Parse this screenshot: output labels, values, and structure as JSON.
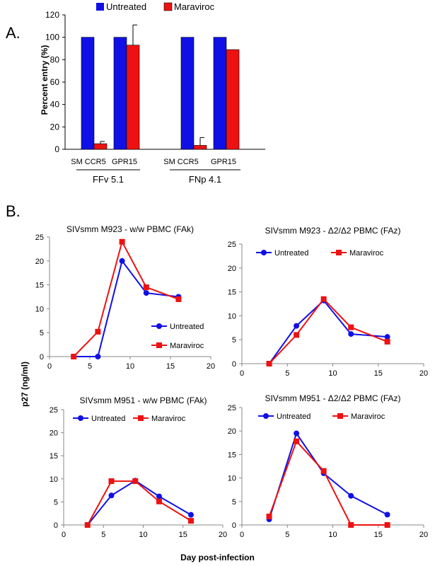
{
  "panel_a_label": "A.",
  "panel_b_label": "B.",
  "colors": {
    "untreated": "#1010e6",
    "maraviroc": "#ee1111"
  },
  "chart_data": [
    {
      "type": "bar",
      "ylabel": "Percent entry (%)",
      "ylim": [
        0,
        120
      ],
      "yticks": [
        "0",
        "20",
        "40",
        "60",
        "80",
        "100",
        "120"
      ],
      "categories": [
        "SM CCR5",
        "GPR15",
        "SM CCR5",
        "GPR15"
      ],
      "groups": [
        "FFv 5.1",
        "FNp 4.1"
      ],
      "legend_placement": "top",
      "series": [
        {
          "name": "Untreated",
          "values": [
            100,
            100,
            100,
            100
          ],
          "error": [
            0,
            0,
            0,
            0
          ]
        },
        {
          "name": "Maraviroc",
          "values": [
            5,
            93,
            3.5,
            89
          ],
          "error": [
            2,
            18,
            7,
            0
          ]
        }
      ]
    },
    {
      "type": "line",
      "title": "SIVsmm M923 - w/w PBMC (FAk)",
      "xlim": [
        0,
        20
      ],
      "ylim": [
        0,
        25
      ],
      "xticks": [
        "0",
        "5",
        "10",
        "15",
        "20"
      ],
      "yticks": [
        "0",
        "5",
        "10",
        "15",
        "20",
        "25"
      ],
      "legend_placement": "inside-right",
      "series": [
        {
          "name": "Untreated",
          "x": [
            3,
            6,
            9,
            12,
            16
          ],
          "y": [
            0,
            0,
            20,
            13.3,
            12.5
          ]
        },
        {
          "name": "Maraviroc",
          "x": [
            3,
            6,
            9,
            12,
            16
          ],
          "y": [
            0,
            5.2,
            24,
            14.5,
            12
          ]
        }
      ]
    },
    {
      "type": "line",
      "title": "SIVsmm M923 - Δ2/Δ2 PBMC (FAz)",
      "xlim": [
        0,
        20
      ],
      "ylim": [
        0,
        25
      ],
      "xticks": [
        "0",
        "5",
        "10",
        "15",
        "20"
      ],
      "yticks": [
        "0",
        "5",
        "10",
        "15",
        "20",
        "25"
      ],
      "legend_placement": "top",
      "series": [
        {
          "name": "Untreated",
          "x": [
            3,
            6,
            9,
            12,
            16
          ],
          "y": [
            0,
            7.9,
            13.2,
            6.2,
            5.6
          ]
        },
        {
          "name": "Maraviroc",
          "x": [
            3,
            6,
            9,
            12,
            16
          ],
          "y": [
            0,
            6,
            13.5,
            7.6,
            4.6
          ]
        }
      ]
    },
    {
      "type": "line",
      "title": "SIVsmm M951 - w/w PBMC (FAk)",
      "xlim": [
        0,
        20
      ],
      "ylim": [
        0,
        25
      ],
      "xticks": [
        "0",
        "5",
        "10",
        "15",
        "20"
      ],
      "yticks": [
        "0",
        "5",
        "10",
        "15",
        "20",
        "25"
      ],
      "legend_placement": "top",
      "series": [
        {
          "name": "Untreated",
          "x": [
            3,
            6,
            9,
            12,
            16
          ],
          "y": [
            0,
            6.4,
            9.6,
            6.2,
            2.2
          ]
        },
        {
          "name": "Maraviroc",
          "x": [
            3,
            6,
            9,
            12,
            16
          ],
          "y": [
            0,
            9.5,
            9.5,
            5.1,
            0.9
          ]
        }
      ]
    },
    {
      "type": "line",
      "title": "SIVsmm M951 - Δ2/Δ2 PBMC (FAz)",
      "xlim": [
        0,
        20
      ],
      "ylim": [
        0,
        25
      ],
      "xticks": [
        "0",
        "5",
        "10",
        "15",
        "20"
      ],
      "yticks": [
        "0",
        "5",
        "10",
        "15",
        "20",
        "25"
      ],
      "legend_placement": "top",
      "series": [
        {
          "name": "Untreated",
          "x": [
            3,
            6,
            9,
            12,
            16
          ],
          "y": [
            1.2,
            19.5,
            11,
            6.2,
            2.2
          ]
        },
        {
          "name": "Maraviroc",
          "x": [
            3,
            6,
            9,
            12,
            16
          ],
          "y": [
            1.8,
            17.8,
            11.5,
            0,
            0
          ]
        }
      ]
    }
  ],
  "shared_ylabel": "p27 (ng/ml)",
  "shared_xlabel": "Day post-infection"
}
